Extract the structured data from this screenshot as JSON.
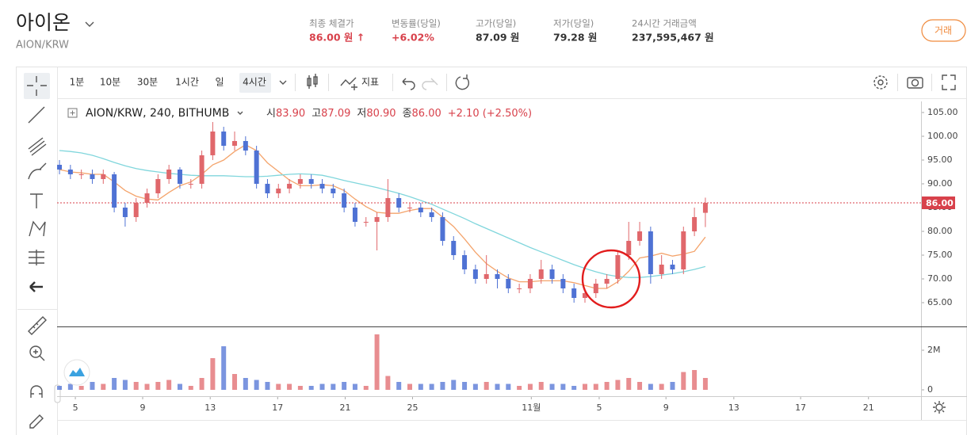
{
  "header": {
    "title": "아이온",
    "pair": "AION/KRW",
    "stats": [
      {
        "label": "최종 체결가",
        "value": "86.00 원 ↑",
        "color": "#d8414b"
      },
      {
        "label": "변동률(당일)",
        "value": "+6.02%",
        "color": "#d8414b"
      },
      {
        "label": "고가(당일)",
        "value": "87.09 원",
        "color": "#333333"
      },
      {
        "label": "저가(당일)",
        "value": "79.28 원",
        "color": "#333333"
      },
      {
        "label": "24시간 거래금액",
        "value": "237,595,467 원",
        "color": "#333333"
      }
    ],
    "button": "거래"
  },
  "toolbar": {
    "intervals": [
      "1분",
      "10분",
      "30분",
      "1시간",
      "일",
      "4시간"
    ],
    "indicator": "지표"
  },
  "legend": {
    "symbol": "AION/KRW, 240, BITHUMB",
    "items": [
      {
        "label": "시",
        "value": "83.90"
      },
      {
        "label": "고",
        "value": "87.09"
      },
      {
        "label": "저",
        "value": "80.90"
      },
      {
        "label": "종",
        "value": "86.00"
      }
    ],
    "change": "+2.10 (+2.50%)"
  },
  "chart_data": {
    "type": "candlestick",
    "up_color": "#e0676b",
    "down_color": "#4f72d4",
    "open": [
      94,
      93,
      92,
      92,
      91,
      92,
      85,
      83,
      86,
      88,
      91,
      93,
      90,
      90,
      96,
      101,
      98,
      99,
      97,
      90,
      88,
      89,
      90,
      91,
      90,
      89,
      88,
      85,
      82,
      82,
      83,
      87,
      85,
      85,
      84,
      83,
      78,
      75,
      72,
      70,
      71,
      70,
      68,
      68,
      70,
      72,
      70,
      68,
      66,
      67,
      69,
      70,
      75,
      78,
      80,
      71,
      73,
      72,
      80,
      83.9
    ],
    "high": [
      95,
      94,
      93,
      93,
      93,
      92.5,
      86,
      87,
      89,
      92,
      94,
      93.5,
      91,
      97,
      103,
      102,
      101,
      100,
      98,
      91,
      90,
      91,
      92,
      92,
      91,
      90,
      89,
      86,
      83,
      84,
      91,
      88,
      86,
      86,
      85,
      84,
      79,
      76,
      73,
      75,
      72,
      71,
      69,
      71,
      74,
      73,
      71,
      69,
      68,
      70,
      71,
      76,
      82,
      82,
      81,
      75,
      74,
      81,
      85,
      87.09
    ],
    "low": [
      92,
      91,
      91,
      90,
      90,
      84,
      81,
      82,
      85,
      87,
      90,
      89,
      89,
      89,
      95,
      97,
      97,
      96,
      89,
      87,
      87,
      88,
      89,
      89,
      88,
      87,
      84,
      81,
      81,
      76,
      82,
      84,
      84,
      83,
      82,
      77,
      74,
      71,
      69,
      69,
      68,
      67,
      67,
      67,
      69,
      69,
      67,
      65,
      65,
      66,
      68,
      69,
      74,
      77,
      69,
      70,
      71,
      71,
      79,
      80.9
    ],
    "close": [
      93,
      92,
      92,
      91,
      92,
      85,
      83,
      86,
      88,
      91,
      93,
      90,
      90,
      96,
      101,
      98,
      99,
      97,
      90,
      88,
      89,
      90,
      91,
      90,
      89,
      88,
      85,
      82,
      82,
      83,
      87,
      85,
      85,
      84,
      83,
      78,
      75,
      72,
      70,
      71,
      70,
      68,
      68,
      70,
      72,
      70,
      68,
      66,
      67,
      69,
      70,
      75,
      78,
      80,
      71,
      73,
      72,
      80,
      83,
      86
    ],
    "volume": [
      200000,
      300000,
      200000,
      400000,
      300000,
      600000,
      500000,
      400000,
      300000,
      400000,
      500000,
      300000,
      200000,
      600000,
      1600000,
      2200000,
      800000,
      600000,
      500000,
      400000,
      300000,
      300000,
      200000,
      200000,
      300000,
      300000,
      400000,
      300000,
      200000,
      2800000,
      700000,
      400000,
      300000,
      300000,
      300000,
      400000,
      500000,
      400000,
      300000,
      400000,
      300000,
      300000,
      200000,
      300000,
      400000,
      300000,
      300000,
      200000,
      300000,
      300000,
      400000,
      500000,
      600000,
      400000,
      300000,
      300000,
      400000,
      900000,
      1000000,
      600000
    ],
    "ma": [
      {
        "color": "#f4a46c",
        "values": [
          93,
          92.5,
          92.3,
          92,
          92,
          90.4,
          88.6,
          87.4,
          86.8,
          86.6,
          88.2,
          89.6,
          90.4,
          92,
          94,
          95,
          96.8,
          98.2,
          97,
          94.4,
          92.6,
          90.8,
          89.6,
          89.6,
          89.8,
          89.6,
          88.6,
          86.8,
          85.2,
          84,
          83.8,
          83.8,
          84.4,
          84.8,
          84.8,
          83,
          81,
          78.4,
          75.6,
          73.2,
          71.6,
          70.2,
          69.4,
          69.4,
          69.6,
          69.6,
          69.6,
          69.2,
          68.6,
          68,
          68,
          69.4,
          71.6,
          74.4,
          74.8,
          75.4,
          74.8,
          75.2,
          75.8,
          78.8
        ]
      },
      {
        "color": "#80d6dc",
        "values": [
          97,
          96.8,
          96.5,
          96,
          95.3,
          94.5,
          93.8,
          93.2,
          92.8,
          92.5,
          92.2,
          92,
          91.8,
          91.7,
          91.7,
          91.7,
          91.6,
          91.5,
          91.5,
          91.6,
          91.8,
          92,
          92.1,
          92,
          91.8,
          91.3,
          90.7,
          90.2,
          89.7,
          89.2,
          88.6,
          88,
          87.3,
          86.5,
          85.7,
          84.7,
          83.7,
          82.7,
          81.6,
          80.6,
          79.6,
          78.6,
          77.6,
          76.6,
          75.7,
          74.8,
          73.9,
          73,
          72.2,
          71.5,
          70.9,
          70.5,
          70.3,
          70.3,
          70.5,
          70.8,
          71.1,
          71.5,
          72,
          72.6
        ]
      }
    ],
    "ylim": [
      60,
      107.33
    ],
    "yticks": [
      {
        "value": 65,
        "label": "65.00"
      },
      {
        "value": 70,
        "label": "70.00"
      },
      {
        "value": 75,
        "label": "75.00"
      },
      {
        "value": 80,
        "label": "80.00"
      },
      {
        "value": 85,
        "label": "85.00"
      },
      {
        "value": 90,
        "label": "90.00"
      },
      {
        "value": 95,
        "label": "95.00"
      },
      {
        "value": 100,
        "label": "100.00"
      },
      {
        "value": 105,
        "label": "105.00"
      }
    ],
    "volume_ylim": [
      -320000,
      3200000
    ],
    "volume_yticks": [
      0,
      {
        "value": 2000000,
        "label": "2M"
      }
    ],
    "xlim": [
      -0.22,
      78.7
    ],
    "xticks": [
      {
        "value": 1.45,
        "label": "5"
      },
      {
        "value": 7.6,
        "label": "9"
      },
      {
        "value": 13.77,
        "label": "13"
      },
      {
        "value": 19.93,
        "label": "17"
      },
      {
        "value": 26.1,
        "label": "21"
      },
      {
        "value": 32.25,
        "label": "25"
      },
      {
        "value": 43.1,
        "label": "11월"
      },
      {
        "value": 49.3,
        "label": "5"
      },
      {
        "value": 55.4,
        "label": "9"
      },
      {
        "value": 61.6,
        "label": "13"
      },
      {
        "value": 67.7,
        "label": "17"
      },
      {
        "value": 73.9,
        "label": "21"
      }
    ],
    "last_price": {
      "value": 86,
      "label": "86.00"
    },
    "last_price_color": "#d8414b"
  }
}
